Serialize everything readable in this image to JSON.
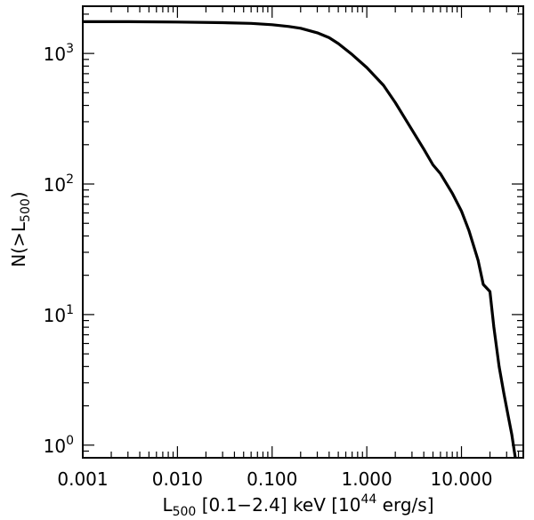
{
  "chart_data": {
    "type": "line",
    "title": "",
    "xlabel": {
      "main": "L",
      "sub": "500",
      "mid": " [0.1−2.4] keV [10",
      "sup": "44",
      "end": " erg/s]"
    },
    "ylabel": {
      "main": "N(>L",
      "sub": "500",
      "end": ")"
    },
    "x_scale": "log",
    "y_scale": "log",
    "xlim": [
      0.001,
      45
    ],
    "ylim": [
      0.8,
      2300
    ],
    "x_ticks": [
      {
        "value": 0.001,
        "label": "0.001"
      },
      {
        "value": 0.01,
        "label": "0.010"
      },
      {
        "value": 0.1,
        "label": "0.100"
      },
      {
        "value": 1,
        "label": "1.000"
      },
      {
        "value": 10,
        "label": "10.000"
      }
    ],
    "y_ticks": [
      {
        "value": 1,
        "base": "10",
        "exp": "0"
      },
      {
        "value": 10,
        "base": "10",
        "exp": "1"
      },
      {
        "value": 100,
        "base": "10",
        "exp": "2"
      },
      {
        "value": 1000,
        "base": "10",
        "exp": "3"
      }
    ],
    "grid": false,
    "series": [
      {
        "color": "#000000",
        "x": [
          0.001,
          0.003,
          0.01,
          0.03,
          0.06,
          0.1,
          0.15,
          0.2,
          0.3,
          0.4,
          0.5,
          0.7,
          1.0,
          1.5,
          2.0,
          3.0,
          4.0,
          5.0,
          6.0,
          8.0,
          10.0,
          12.0,
          15.0,
          17.0,
          20.0,
          22.0,
          25.0,
          28.0,
          31.0,
          34.0,
          37.0
        ],
        "y": [
          1750,
          1750,
          1740,
          1720,
          1700,
          1660,
          1610,
          1560,
          1440,
          1320,
          1190,
          980,
          780,
          570,
          420,
          260,
          185,
          140,
          120,
          85,
          62,
          44,
          26,
          17,
          15,
          8,
          4,
          2.5,
          1.7,
          1.2,
          0.8
        ]
      }
    ]
  }
}
